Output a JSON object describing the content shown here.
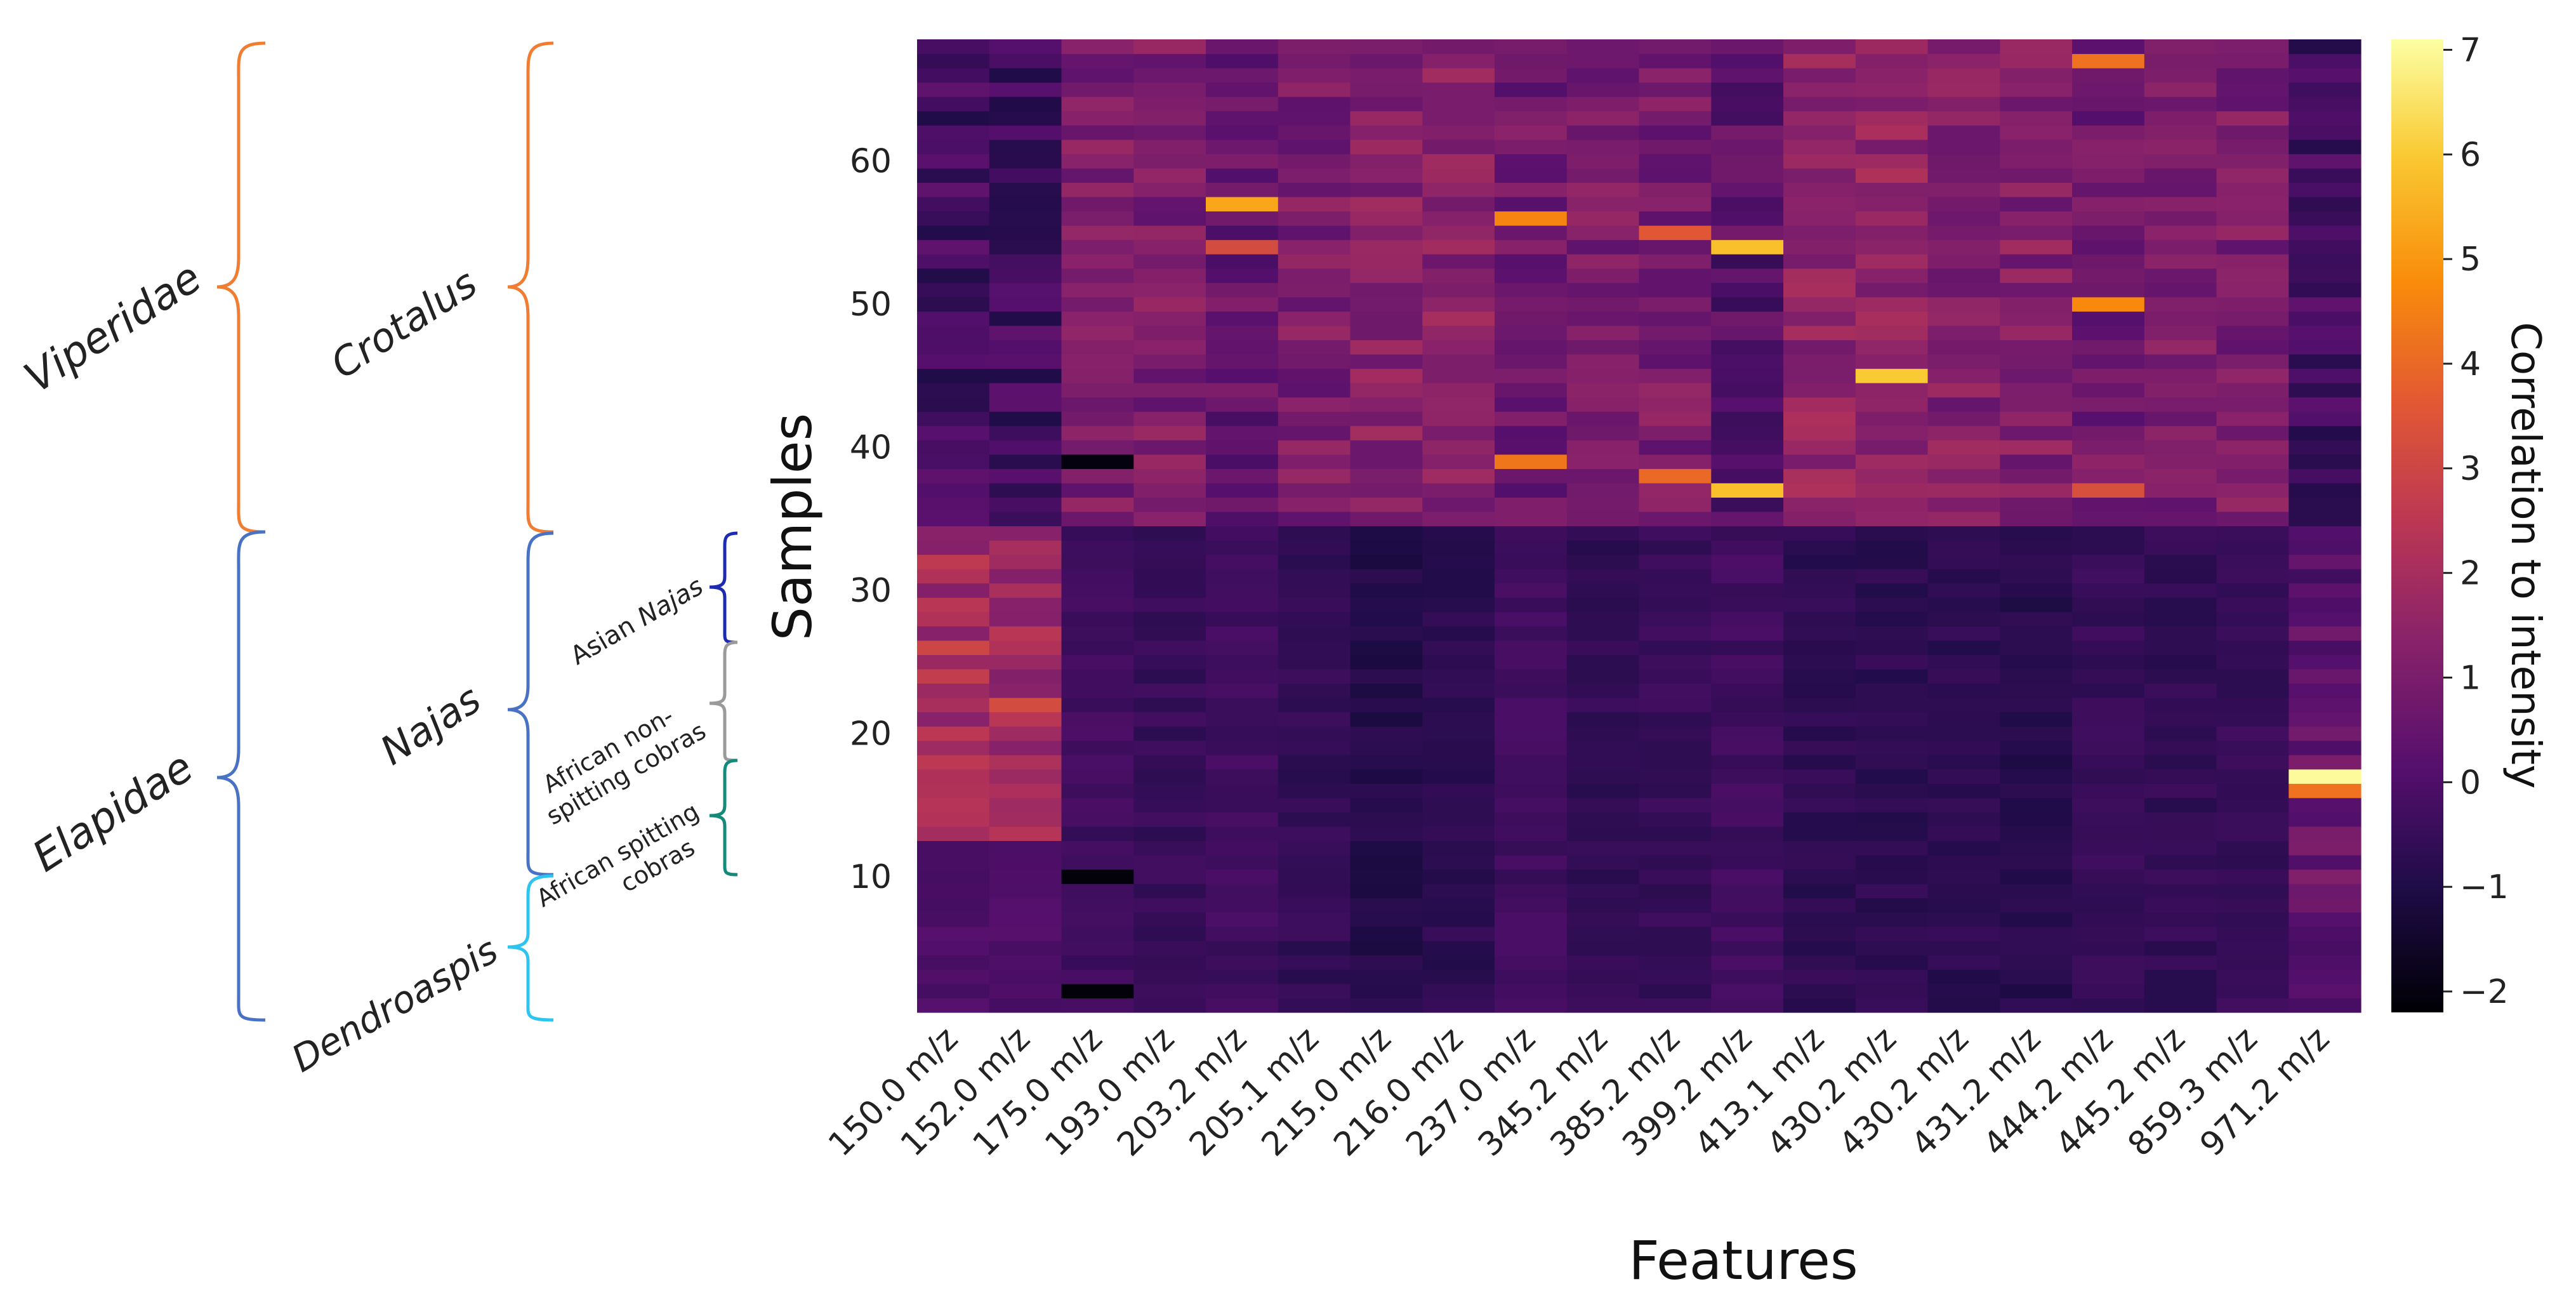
{
  "chart_data": {
    "type": "heatmap",
    "title": "",
    "xlabel": "Features",
    "ylabel": "Samples",
    "colorbar_label": "Correlation to intensity",
    "colormap": "inferno",
    "zlim": [
      -2.2,
      7.1
    ],
    "colorbar_ticks": [
      7,
      6,
      5,
      4,
      3,
      2,
      1,
      0,
      -1,
      -2
    ],
    "colorbar_tick_labels": [
      "7",
      "6",
      "5",
      "4",
      "3",
      "2",
      "1",
      "0",
      "−1",
      "−2"
    ],
    "ylim": [
      0.5,
      68.5
    ],
    "y_ticks": [
      10,
      20,
      30,
      40,
      50,
      60
    ],
    "n_samples": 68,
    "features": [
      "150.0 m/z",
      "152.0 m/z",
      "175.0 m/z",
      "193.0 m/z",
      "203.2 m/z",
      "205.1 m/z",
      "215.0 m/z",
      "216.0 m/z",
      "237.0 m/z",
      "345.2 m/z",
      "385.2 m/z",
      "399.2 m/z",
      "413.1 m/z",
      "430.2 m/z",
      "430.2 m/z",
      "431.2 m/z",
      "444.2 m/z",
      "445.2 m/z",
      "859.3 m/z",
      "971.2 m/z"
    ],
    "group_baselines": {
      "elapid_rows_1_34": [
        0.0,
        0.0,
        -0.3,
        -0.5,
        -0.3,
        -0.6,
        -0.9,
        -0.7,
        -0.3,
        -0.6,
        -0.5,
        -0.3,
        -0.7,
        -0.7,
        -0.7,
        -0.8,
        -0.5,
        -0.6,
        -0.5,
        0.0
      ],
      "viperid_rows_35_68": [
        -0.3,
        -0.3,
        1.0,
        1.0,
        0.5,
        1.0,
        1.3,
        1.3,
        0.7,
        1.0,
        1.0,
        0.2,
        1.5,
        1.5,
        1.2,
        1.2,
        0.8,
        1.0,
        1.0,
        -0.3
      ]
    },
    "notable_cells": [
      {
        "feature": "203.2 m/z",
        "sample": 57,
        "value": 5.3
      },
      {
        "feature": "203.2 m/z",
        "sample": 54,
        "value": 3.2
      },
      {
        "feature": "237.0 m/z",
        "sample": 56,
        "value": 4.6
      },
      {
        "feature": "237.0 m/z",
        "sample": 39,
        "value": 4.3
      },
      {
        "feature": "385.2 m/z",
        "sample": 55,
        "value": 3.6
      },
      {
        "feature": "385.2 m/z",
        "sample": 38,
        "value": 4.0
      },
      {
        "feature": "399.2 m/z",
        "sample": 54,
        "value": 5.8
      },
      {
        "feature": "399.2 m/z",
        "sample": 37,
        "value": 5.8
      },
      {
        "feature": "430.2 m/z",
        "sample": 45,
        "value": 6.0
      },
      {
        "feature": "444.2 m/z",
        "sample": 67,
        "value": 4.2
      },
      {
        "feature": "444.2 m/z",
        "sample": 50,
        "value": 4.7
      },
      {
        "feature": "444.2 m/z",
        "sample": 37,
        "value": 3.3
      },
      {
        "feature": "971.2 m/z",
        "sample": 17,
        "value": 7.0
      },
      {
        "feature": "971.2 m/z",
        "sample": 16,
        "value": 4.2
      },
      {
        "feature": "175.0 m/z",
        "sample": 39,
        "value": -2.0
      },
      {
        "feature": "175.0 m/z",
        "sample": 10,
        "value": -2.1
      },
      {
        "feature": "175.0 m/z",
        "sample": 2,
        "value": -2.1
      },
      {
        "feature": "150.0 m/z",
        "sample": 26,
        "value": 3.0
      },
      {
        "feature": "152.0 m/z",
        "sample": 22,
        "value": 3.2
      }
    ]
  },
  "taxonomy": {
    "family": {
      "viperidae": {
        "label": "Viperidae",
        "color": "#f07d32"
      },
      "elapidae": {
        "label": "Elapidae",
        "color": "#4a72c4"
      }
    },
    "genus": {
      "crotalus": {
        "label": "Crotalus",
        "color": "#f07d32"
      },
      "najas": {
        "label": "Najas",
        "color": "#4a72c4"
      },
      "dendroaspis": {
        "label": "Dendroaspis",
        "color": "#2ec4f0"
      }
    },
    "subgroup": {
      "asian_najas": {
        "label_prefix": "Asian ",
        "label_italic": "Najas",
        "color": "#1d2bb0"
      },
      "african_nonspitting": {
        "line1": "African non-",
        "line2": "spitting cobras",
        "color": "#9a9a9a"
      },
      "african_spitting": {
        "line1": "African spitting",
        "line2": "cobras",
        "color": "#138a7a"
      }
    }
  }
}
